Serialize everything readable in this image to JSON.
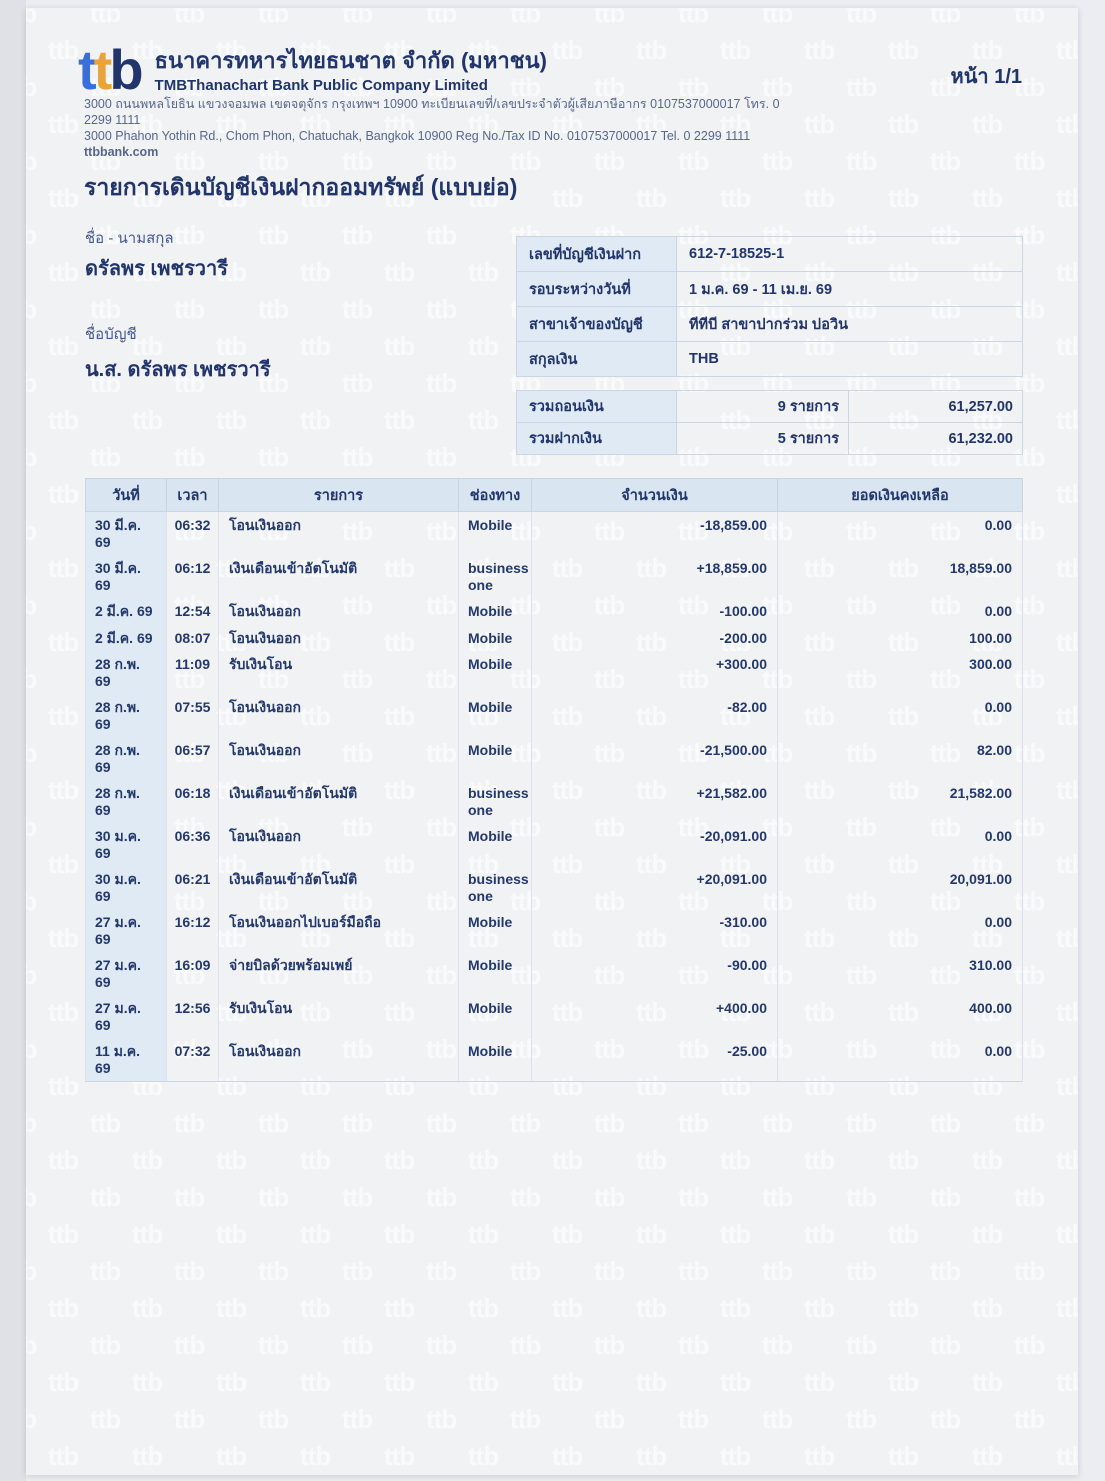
{
  "watermark": {
    "text": "ttb"
  },
  "colors": {
    "brand_blue": "#3a6fd8",
    "brand_orange": "#e9a23c",
    "brand_navy": "#21356b",
    "cell_blue_bg": "#dfeaf4",
    "header_blue_bg": "#d9e6f2",
    "page_bg": "#f1f2f4"
  },
  "header": {
    "logo_letters": [
      {
        "char": "t",
        "color": "#3a6fd8"
      },
      {
        "char": "t",
        "color": "#e9a23c"
      },
      {
        "char": "b",
        "color": "#21356b"
      }
    ],
    "bank_name_th": "ธนาคารทหารไทยธนชาต จำกัด (มหาชน)",
    "bank_name_en": "TMBThanachart Bank Public Company Limited",
    "page_label": "หน้า 1/1",
    "address_th": "3000 ถนนพหลโยธิน แขวงจอมพล เขตจตุจักร กรุงเทพฯ 10900 ทะเบียนเลขที่/เลขประจำตัวผู้เสียภาษีอากร 0107537000017 โทร. 0 2299 1111",
    "address_en": "3000 Phahon Yothin Rd., Chom Phon, Chatuchak, Bangkok 10900 Reg No./Tax ID No. 0107537000017 Tel. 0 2299 1111",
    "website": "ttbbank.com"
  },
  "statement": {
    "title": "รายการเดินบัญชีเงินฝากออมทรัพย์ (แบบย่อ)",
    "customer": {
      "name_label": "ชื่อ - นามสกุล",
      "name": "ดรัลพร เพชรวารี",
      "account_name_label": "ชื่อบัญชี",
      "account_name": "น.ส. ดรัลพร เพชรวารี"
    },
    "account_info": [
      {
        "label": "เลขที่บัญชีเงินฝาก",
        "value": "612-7-18525-1"
      },
      {
        "label": "รอบระหว่างวันที่",
        "value": "1 ม.ค. 69 - 11 เม.ย. 69"
      },
      {
        "label": "สาขาเจ้าของบัญชี",
        "value": "ทีทีบี สาขาปากร่วม บ่อวิน"
      },
      {
        "label": "สกุลเงิน",
        "value": "THB"
      }
    ],
    "summary": [
      {
        "label": "รวมถอนเงิน",
        "count": "9 รายการ",
        "amount": "61,257.00"
      },
      {
        "label": "รวมฝากเงิน",
        "count": "5 รายการ",
        "amount": "61,232.00"
      }
    ]
  },
  "transactions": {
    "columns": [
      "วันที่",
      "เวลา",
      "รายการ",
      "ช่องทาง",
      "จำนวนเงิน",
      "ยอดเงินคงเหลือ"
    ],
    "rows": [
      {
        "date": "30 มี.ค. 69",
        "time": "06:32",
        "description": "โอนเงินออก",
        "channel": "Mobile",
        "amount": "-18,859.00",
        "balance": "0.00"
      },
      {
        "date": "30 มี.ค. 69",
        "time": "06:12",
        "description": "เงินเดือนเข้าอัตโนมัติ",
        "channel": "business one",
        "amount": "+18,859.00",
        "balance": "18,859.00"
      },
      {
        "date": "2 มี.ค. 69",
        "time": "12:54",
        "description": "โอนเงินออก",
        "channel": "Mobile",
        "amount": "-100.00",
        "balance": "0.00"
      },
      {
        "date": "2 มี.ค. 69",
        "time": "08:07",
        "description": "โอนเงินออก",
        "channel": "Mobile",
        "amount": "-200.00",
        "balance": "100.00"
      },
      {
        "date": "28 ก.พ. 69",
        "time": "11:09",
        "description": "รับเงินโอน",
        "channel": "Mobile",
        "amount": "+300.00",
        "balance": "300.00"
      },
      {
        "date": "28 ก.พ. 69",
        "time": "07:55",
        "description": "โอนเงินออก",
        "channel": "Mobile",
        "amount": "-82.00",
        "balance": "0.00"
      },
      {
        "date": "28 ก.พ. 69",
        "time": "06:57",
        "description": "โอนเงินออก",
        "channel": "Mobile",
        "amount": "-21,500.00",
        "balance": "82.00"
      },
      {
        "date": "28 ก.พ. 69",
        "time": "06:18",
        "description": "เงินเดือนเข้าอัตโนมัติ",
        "channel": "business one",
        "amount": "+21,582.00",
        "balance": "21,582.00"
      },
      {
        "date": "30 ม.ค. 69",
        "time": "06:36",
        "description": "โอนเงินออก",
        "channel": "Mobile",
        "amount": "-20,091.00",
        "balance": "0.00"
      },
      {
        "date": "30 ม.ค. 69",
        "time": "06:21",
        "description": "เงินเดือนเข้าอัตโนมัติ",
        "channel": "business one",
        "amount": "+20,091.00",
        "balance": "20,091.00"
      },
      {
        "date": "27 ม.ค. 69",
        "time": "16:12",
        "description": "โอนเงินออกไปเบอร์มือถือ",
        "channel": "Mobile",
        "amount": "-310.00",
        "balance": "0.00"
      },
      {
        "date": "27 ม.ค. 69",
        "time": "16:09",
        "description": "จ่ายบิลด้วยพร้อมเพย์",
        "channel": "Mobile",
        "amount": "-90.00",
        "balance": "310.00"
      },
      {
        "date": "27 ม.ค. 69",
        "time": "12:56",
        "description": "รับเงินโอน",
        "channel": "Mobile",
        "amount": "+400.00",
        "balance": "400.00"
      },
      {
        "date": "11 ม.ค. 69",
        "time": "07:32",
        "description": "โอนเงินออก",
        "channel": "Mobile",
        "amount": "-25.00",
        "balance": "0.00"
      }
    ]
  }
}
